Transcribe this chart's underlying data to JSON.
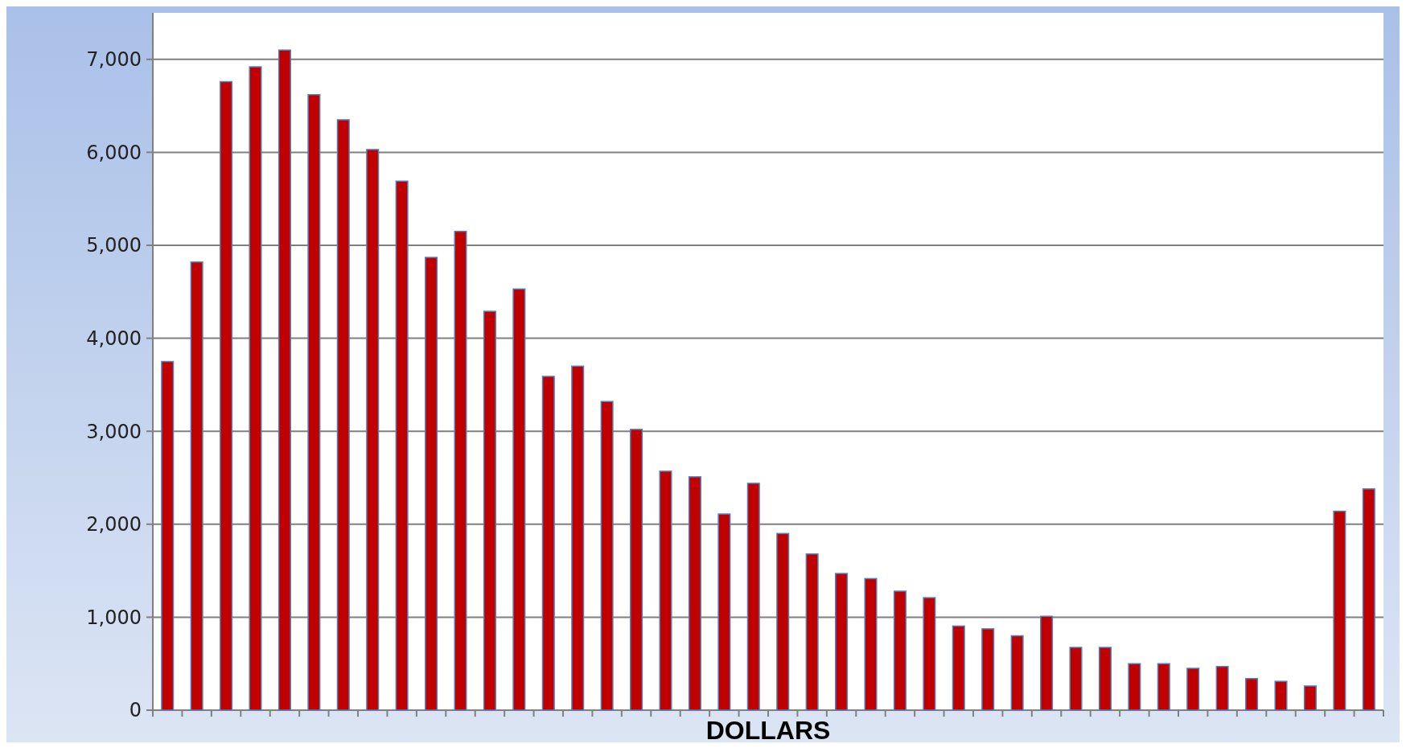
{
  "chart_data": {
    "type": "bar",
    "xlabel": "DOLLARS",
    "categories": [
      null,
      null,
      null,
      null,
      null,
      null,
      null,
      null,
      null,
      null,
      null,
      null,
      null,
      null,
      null,
      null,
      null,
      null,
      null,
      null,
      null,
      null,
      null,
      null,
      null,
      null,
      null,
      null,
      null,
      null,
      null,
      null,
      null,
      null,
      null,
      null,
      null,
      null,
      null,
      null,
      null,
      null
    ],
    "values": [
      3750,
      4820,
      6760,
      6920,
      7100,
      6620,
      6350,
      6030,
      5690,
      4870,
      5150,
      4290,
      4530,
      3590,
      3700,
      3320,
      3020,
      2570,
      2510,
      2110,
      2440,
      1900,
      1680,
      1470,
      1415,
      1280,
      1210,
      905,
      875,
      800,
      1010,
      675,
      675,
      500,
      500,
      450,
      470,
      340,
      310,
      260,
      2140,
      2380
    ],
    "color": "#c00000",
    "ylim": [
      0,
      7500
    ],
    "yticks": [
      {
        "value": 0,
        "label": "0"
      },
      {
        "value": 1000,
        "label": "1,000"
      },
      {
        "value": 2000,
        "label": "2,000"
      },
      {
        "value": 3000,
        "label": "3,000"
      },
      {
        "value": 4000,
        "label": "4,000"
      },
      {
        "value": 5000,
        "label": "5,000"
      },
      {
        "value": 6000,
        "label": "6,000"
      },
      {
        "value": 7000,
        "label": "7,000"
      }
    ],
    "grid": "y"
  }
}
